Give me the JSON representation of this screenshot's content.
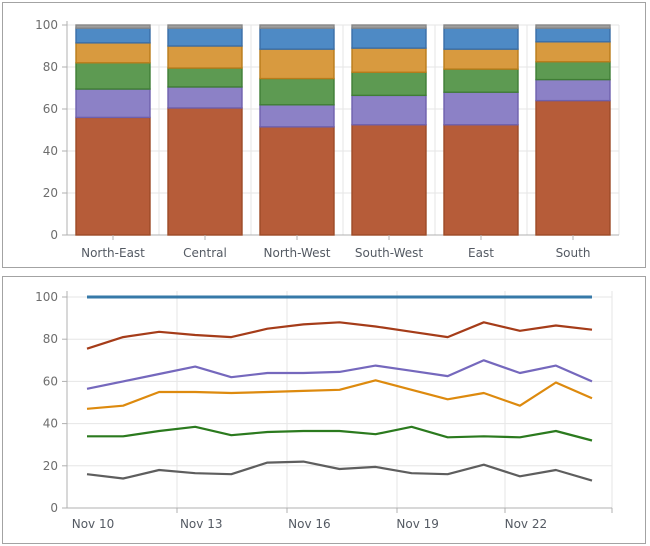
{
  "page": {
    "background": "#ffffff",
    "panel_border": "#a3a3a3",
    "axis_color": "#b0b0b0",
    "grid_color": "#e6e6e6",
    "y_label_color": "#6d6d6d",
    "x_label_color": "#545a63"
  },
  "chart_data": [
    {
      "id": "stacked-bar-chart",
      "type": "bar",
      "stacked": true,
      "categories": [
        "North-East",
        "Central",
        "North-West",
        "South-West",
        "East",
        "South"
      ],
      "yticks": [
        0,
        20,
        40,
        60,
        80,
        100
      ],
      "ylim": [
        0,
        100
      ],
      "grid": true,
      "legend_position": "none",
      "series": [
        {
          "name": "brick-red-series",
          "color": "#b65c39",
          "border": "#9c4a26",
          "values": [
            56,
            60.5,
            51.5,
            52.5,
            52.5,
            64
          ]
        },
        {
          "name": "purple-series",
          "color": "#8c81c6",
          "border": "#6e60ad",
          "values": [
            13.5,
            10,
            10.5,
            14,
            15.5,
            10
          ]
        },
        {
          "name": "green-series",
          "color": "#5d9a52",
          "border": "#3f7d35",
          "values": [
            12.5,
            9,
            12.5,
            11,
            11,
            8.5
          ]
        },
        {
          "name": "orange-series",
          "color": "#d89a3f",
          "border": "#b87c1b",
          "values": [
            9.5,
            10.5,
            14,
            11.5,
            9.5,
            9.5
          ]
        },
        {
          "name": "blue-series",
          "color": "#4e8ac5",
          "border": "#3a6ea8",
          "values": [
            7,
            8.5,
            10,
            9.5,
            10,
            6.5
          ]
        },
        {
          "name": "gray-cap-series",
          "color": "#9f9f9f",
          "border": "#878787",
          "values": [
            1.5,
            1.5,
            1.5,
            1.5,
            1.5,
            1.5
          ]
        }
      ]
    },
    {
      "id": "line-chart",
      "type": "line",
      "x_tick_labels": [
        "Nov 10",
        "Nov 13",
        "Nov 16",
        "Nov 19",
        "Nov 22"
      ],
      "x_tick_indices": [
        0,
        3,
        6,
        9,
        12
      ],
      "points_count": 15,
      "yticks": [
        0,
        20,
        40,
        60,
        80,
        100
      ],
      "ylim": [
        0,
        100
      ],
      "grid": true,
      "legend_position": "none",
      "series": [
        {
          "name": "steel-blue-series",
          "color": "#3679a8",
          "width": 3,
          "values": [
            100,
            100,
            100,
            100,
            100,
            100,
            100,
            100,
            100,
            100,
            100,
            100,
            100,
            100,
            100
          ]
        },
        {
          "name": "dark-red-series",
          "color": "#a53c19",
          "width": 2.2,
          "values": [
            75.5,
            81,
            83.5,
            82,
            81,
            85,
            87,
            88,
            86,
            83.5,
            81,
            88,
            84,
            86.5,
            84.5
          ]
        },
        {
          "name": "violet-series",
          "color": "#7568bd",
          "width": 2.2,
          "values": [
            56.5,
            60,
            63.5,
            67,
            62,
            64,
            64,
            64.5,
            67.5,
            65,
            62.5,
            70,
            64,
            67.5,
            60
          ]
        },
        {
          "name": "orange-series",
          "color": "#dd8a0e",
          "width": 2.2,
          "values": [
            47,
            48.5,
            55,
            55,
            54.5,
            55,
            55.5,
            56,
            60.5,
            56,
            51.5,
            54.5,
            48.5,
            59.5,
            52
          ]
        },
        {
          "name": "green-series",
          "color": "#2b7a1e",
          "width": 2.2,
          "values": [
            34,
            34,
            36.5,
            38.5,
            34.5,
            36,
            36.5,
            36.5,
            35,
            38.5,
            33.5,
            34,
            33.5,
            36.5,
            32
          ]
        },
        {
          "name": "gray-series",
          "color": "#5e5e5e",
          "width": 2.2,
          "values": [
            16,
            14,
            18,
            16.5,
            16,
            21.5,
            22,
            18.5,
            19.5,
            16.5,
            16,
            20.5,
            15,
            18,
            13
          ]
        }
      ]
    }
  ]
}
